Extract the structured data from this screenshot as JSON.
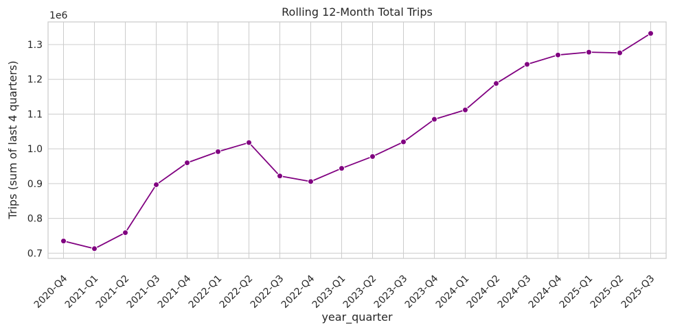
{
  "chart_data": {
    "type": "line",
    "title": "Rolling 12-Month Total Trips",
    "xlabel": "year_quarter",
    "ylabel": "Trips (sum of last 4 quarters)",
    "y_offset_label": "1e6",
    "ylim": [
      0.685,
      1.365
    ],
    "yticks": [
      0.7,
      0.8,
      0.9,
      1.0,
      1.1,
      1.2,
      1.3
    ],
    "ytick_labels": [
      "0.7",
      "0.8",
      "0.9",
      "1.0",
      "1.1",
      "1.2",
      "1.3"
    ],
    "grid": true,
    "categories": [
      "2020-Q4",
      "2021-Q1",
      "2021-Q2",
      "2021-Q3",
      "2021-Q4",
      "2022-Q1",
      "2022-Q2",
      "2022-Q3",
      "2022-Q4",
      "2023-Q1",
      "2023-Q2",
      "2023-Q3",
      "2023-Q4",
      "2024-Q1",
      "2024-Q2",
      "2024-Q3",
      "2024-Q4",
      "2025-Q1",
      "2025-Q2",
      "2025-Q3"
    ],
    "series": [
      {
        "values": [
          0.735,
          0.713,
          0.759,
          0.897,
          0.96,
          0.992,
          1.018,
          0.922,
          0.906,
          0.944,
          0.978,
          1.02,
          1.085,
          1.112,
          1.188,
          1.243,
          1.27,
          1.278,
          1.276,
          1.332
        ],
        "color": "#800080"
      }
    ]
  }
}
